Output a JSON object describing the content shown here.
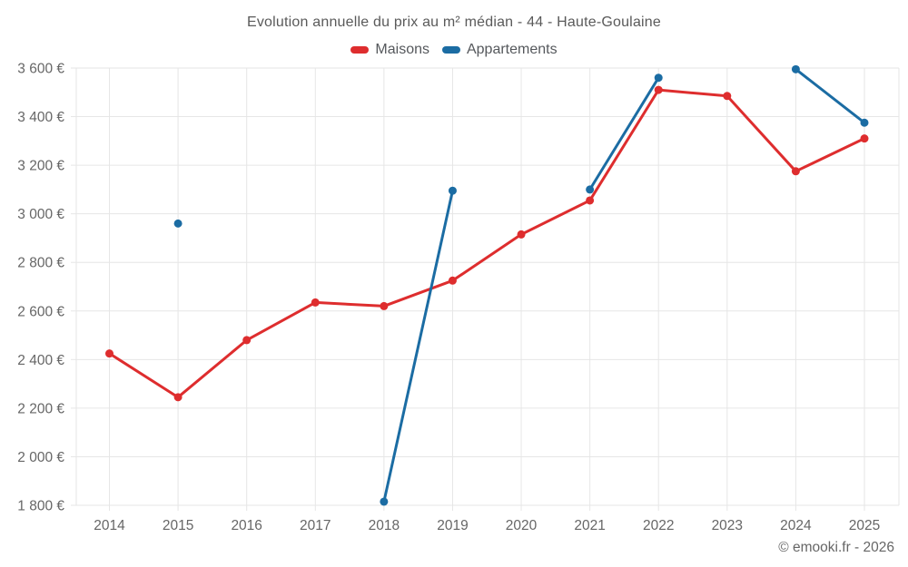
{
  "footer": {
    "credit": "© emooki.fr - 2026"
  },
  "colors": {
    "grid": "#e6e6e6",
    "axis_text": "#666666",
    "title_text": "#5a5a5a"
  },
  "chart_data": {
    "type": "line",
    "title": "Evolution annuelle du prix au m² médian - 44 - Haute-Goulaine",
    "xlabel": "",
    "ylabel": "",
    "categories": [
      2014,
      2015,
      2016,
      2017,
      2018,
      2019,
      2020,
      2021,
      2022,
      2023,
      2024,
      2025
    ],
    "series": [
      {
        "name": "Maisons",
        "color": "#de2d2e",
        "values": [
          2425,
          2245,
          2480,
          2635,
          2620,
          2725,
          2915,
          3055,
          3510,
          3485,
          3175,
          3310
        ]
      },
      {
        "name": "Appartements",
        "color": "#1b6ca3",
        "values": [
          null,
          2960,
          null,
          null,
          1815,
          3095,
          null,
          3100,
          3560,
          null,
          3595,
          3375
        ]
      }
    ],
    "ylim": [
      1800,
      3600
    ],
    "ytick_step": 200,
    "ytick_format": "thousands-space-euro",
    "grid": true,
    "legend_position": "top"
  }
}
